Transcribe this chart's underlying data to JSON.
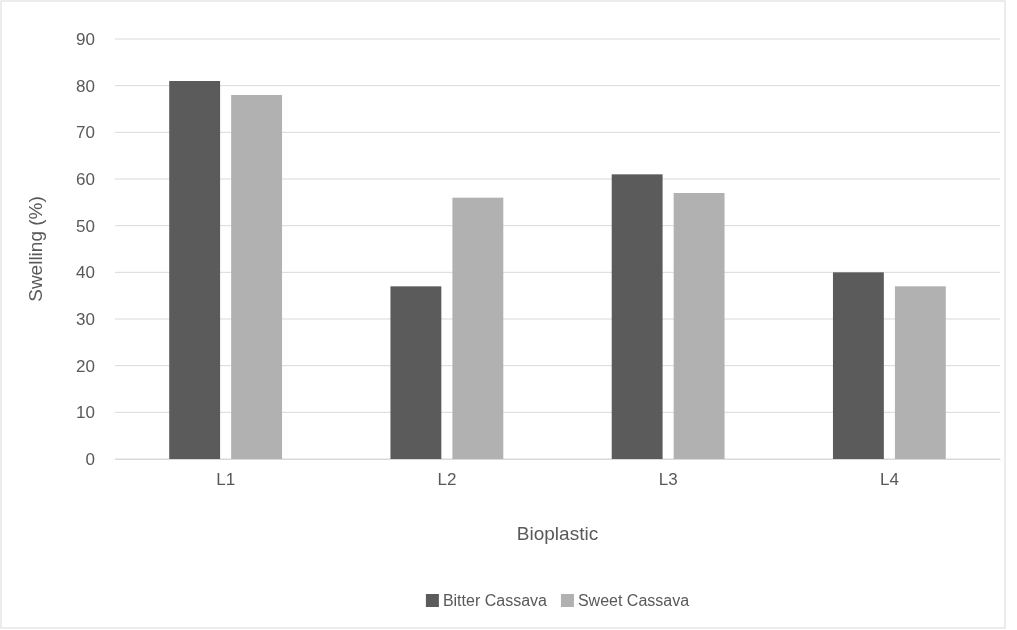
{
  "chart_data": {
    "type": "bar",
    "xlabel": "Bioplastic",
    "ylabel": "Swelling (%)",
    "categories": [
      "L1",
      "L2",
      "L3",
      "L4"
    ],
    "series": [
      {
        "name": "Bitter Cassava",
        "color": "#5b5b5b",
        "values": [
          81,
          37,
          61,
          40
        ]
      },
      {
        "name": "Sweet Cassava",
        "color": "#b1b1b1",
        "values": [
          78,
          56,
          57,
          37
        ]
      }
    ],
    "ylim": [
      0,
      90
    ],
    "yticks": [
      0,
      10,
      20,
      30,
      40,
      50,
      60,
      70,
      80,
      90
    ],
    "grid": "y",
    "legend": "bottom"
  }
}
